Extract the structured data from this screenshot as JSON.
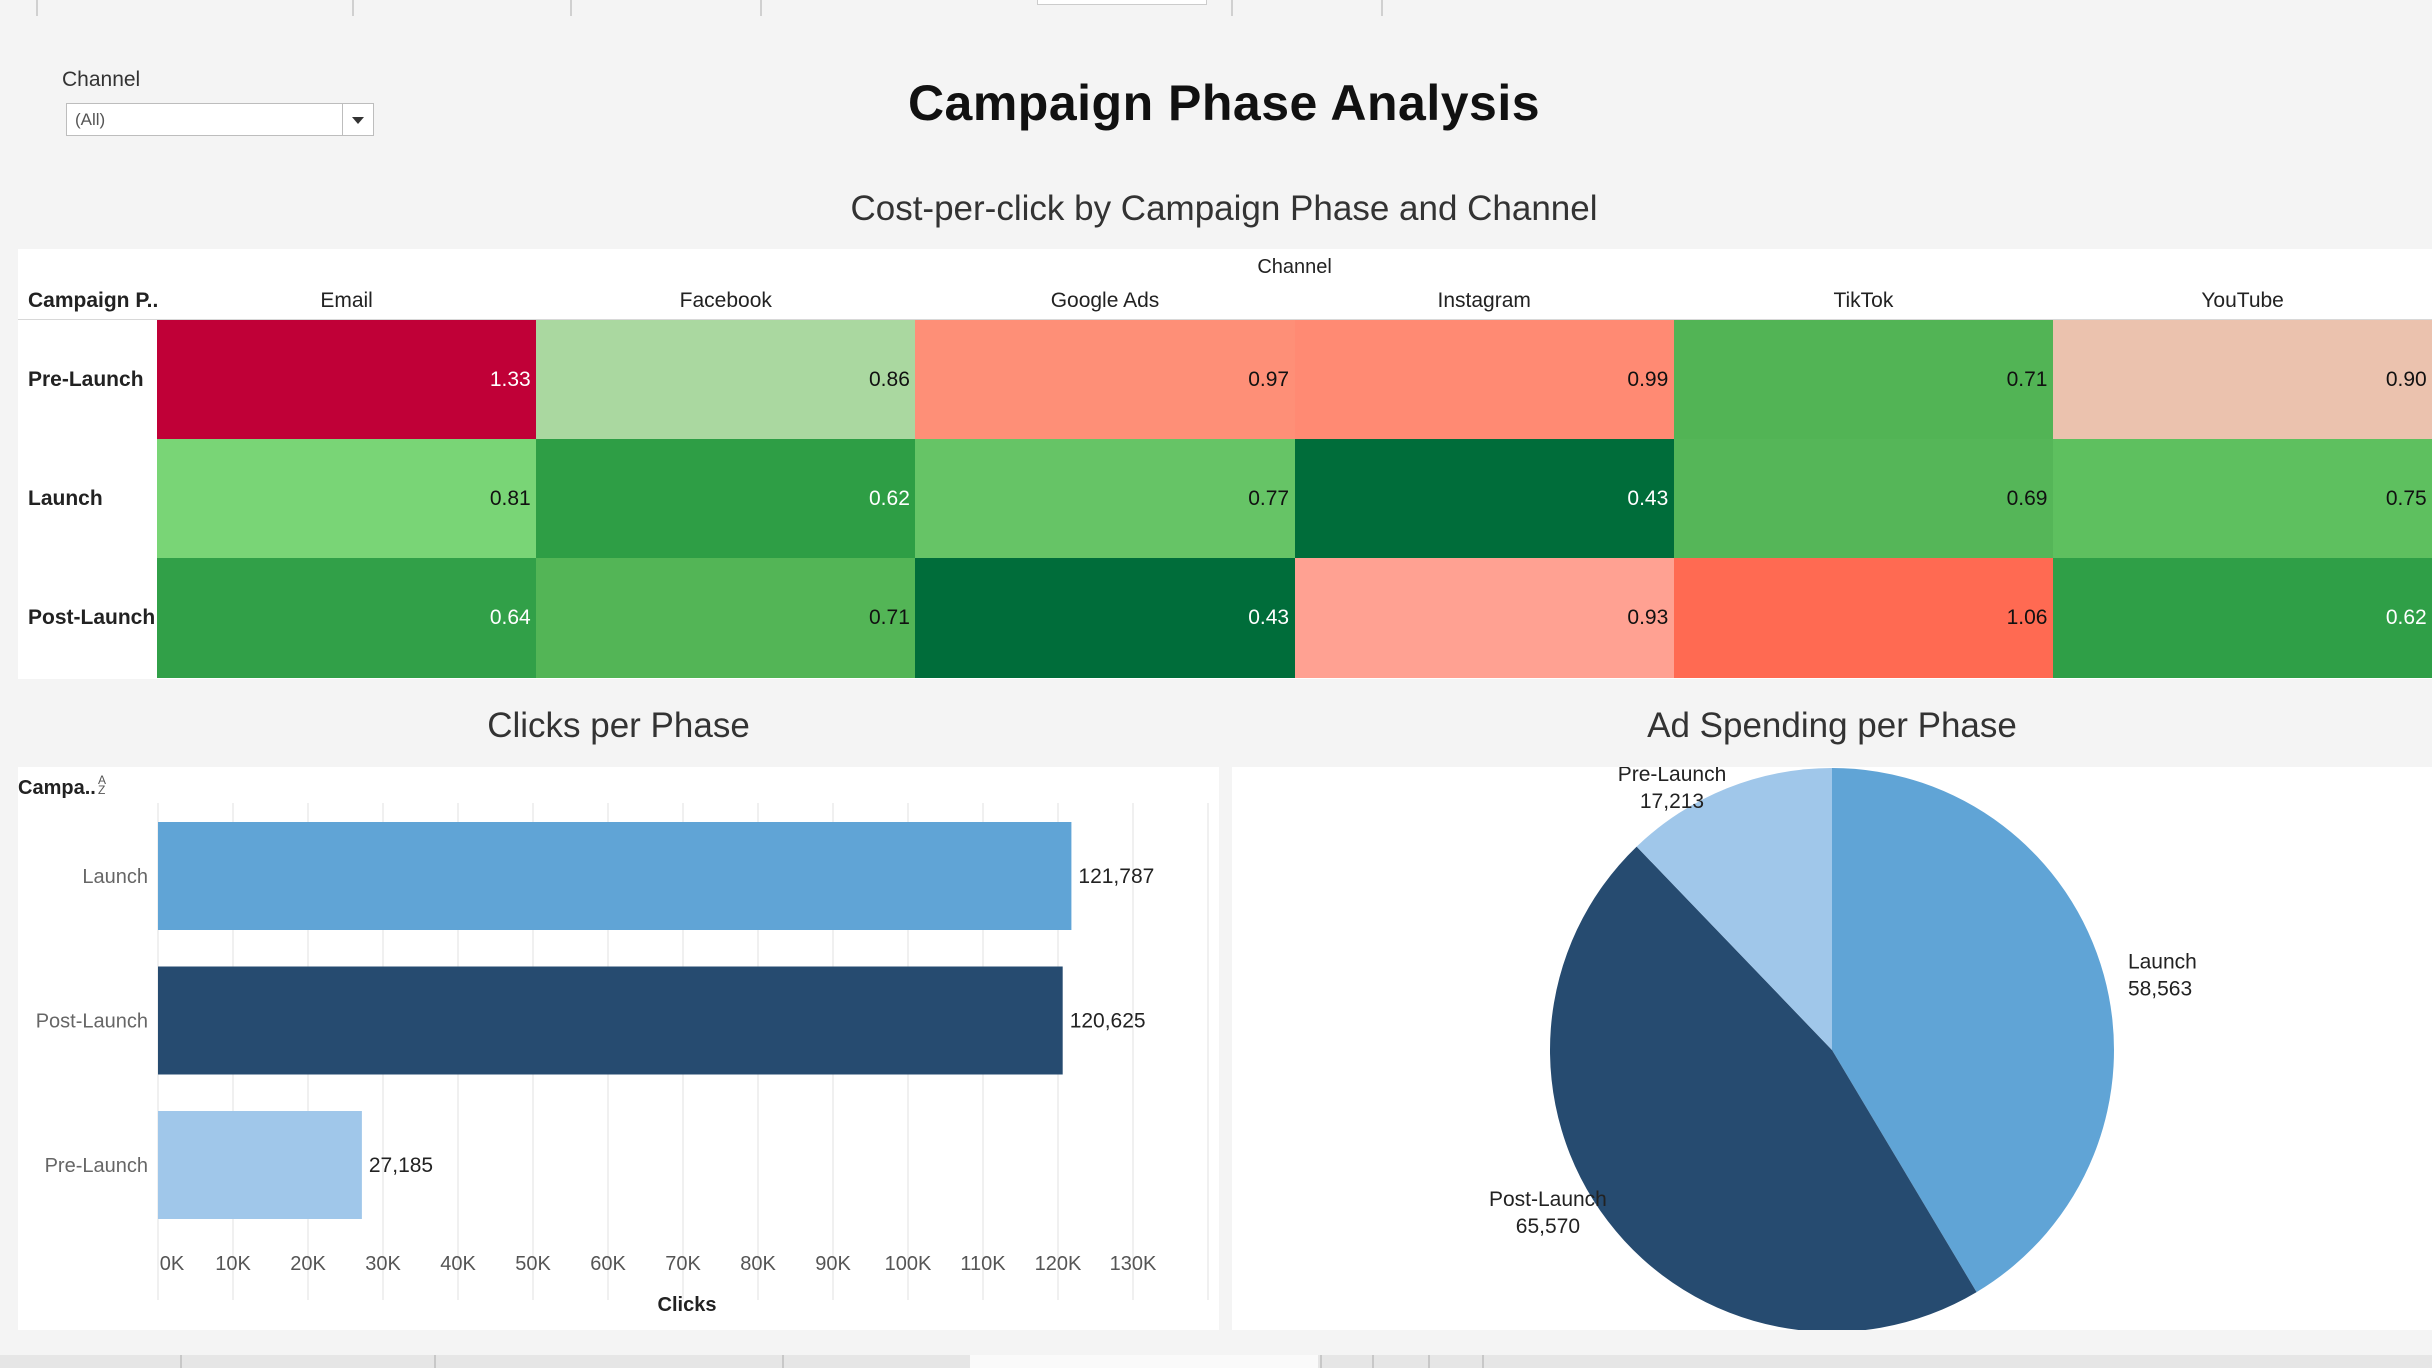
{
  "dashboard": {
    "title": "Campaign Phase Analysis",
    "filter": {
      "label": "Channel",
      "value": "(All)"
    }
  },
  "heatmap_title": "Cost-per-click by Campaign Phase and Channel",
  "bar_title": "Clicks per Phase",
  "pie_title": "Ad Spending per Phase",
  "colors": {
    "launch": "#60a4d6",
    "post_launch": "#264b70",
    "pre_launch": "#a0c7ea"
  },
  "chart_data": [
    {
      "type": "heatmap",
      "title": "Cost-per-click by Campaign Phase and Channel",
      "column_axis_label": "Channel",
      "row_axis_label": "Campaign P..",
      "columns": [
        "Email",
        "Facebook",
        "Google Ads",
        "Instagram",
        "TikTok",
        "YouTube"
      ],
      "rows": [
        "Pre-Launch",
        "Launch",
        "Post-Launch"
      ],
      "values": [
        [
          "1.33",
          "0.86",
          "0.97",
          "0.99",
          "0.71",
          "0.90"
        ],
        [
          "0.81",
          "0.62",
          "0.77",
          "0.43",
          "0.69",
          "0.75"
        ],
        [
          "0.64",
          "0.71",
          "0.43",
          "0.93",
          "1.06",
          "0.62"
        ]
      ],
      "cell_colors": [
        [
          "#c00037",
          "#aad8a0",
          "#fe8f77",
          "#ff8a73",
          "#52b455",
          "#ebc2ae"
        ],
        [
          "#79d576",
          "#2e9e45",
          "#66c466",
          "#006d3a",
          "#55b658",
          "#5ec05f"
        ],
        [
          "#31a048",
          "#53b556",
          "#006d3a",
          "#ffa192",
          "#ff6a52",
          "#2f9f47"
        ]
      ],
      "text_colors": [
        [
          "#ffffff",
          "#111111",
          "#111111",
          "#111111",
          "#111111",
          "#111111"
        ],
        [
          "#111111",
          "#ffffff",
          "#111111",
          "#ffffff",
          "#111111",
          "#111111"
        ],
        [
          "#ffffff",
          "#111111",
          "#ffffff",
          "#111111",
          "#111111",
          "#ffffff"
        ]
      ]
    },
    {
      "type": "bar",
      "orientation": "horizontal",
      "title": "Clicks per Phase",
      "corner_label": "Campa..",
      "xlabel": "Clicks",
      "categories": [
        "Launch",
        "Post-Launch",
        "Pre-Launch"
      ],
      "values": [
        121787,
        120625,
        27185
      ],
      "value_labels": [
        "121,787",
        "120,625",
        "27,185"
      ],
      "bar_colors": [
        "#60a4d6",
        "#264b70",
        "#a0c7ea"
      ],
      "xlim": [
        0,
        140000
      ],
      "xticks": [
        0,
        10000,
        20000,
        30000,
        40000,
        50000,
        60000,
        70000,
        80000,
        90000,
        100000,
        110000,
        120000,
        130000
      ],
      "xtick_labels": [
        "0K",
        "10K",
        "20K",
        "30K",
        "40K",
        "50K",
        "60K",
        "70K",
        "80K",
        "90K",
        "100K",
        "110K",
        "120K",
        "130K"
      ],
      "grid": "vertical"
    },
    {
      "type": "pie",
      "title": "Ad Spending per Phase",
      "slices": [
        {
          "label": "Launch",
          "value": 58563,
          "value_label": "58,563",
          "color": "#60a4d6"
        },
        {
          "label": "Post-Launch",
          "value": 65570,
          "value_label": "65,570",
          "color": "#264b70"
        },
        {
          "label": "Pre-Launch",
          "value": 17213,
          "value_label": "17,213",
          "color": "#a0c7ea"
        }
      ]
    }
  ]
}
